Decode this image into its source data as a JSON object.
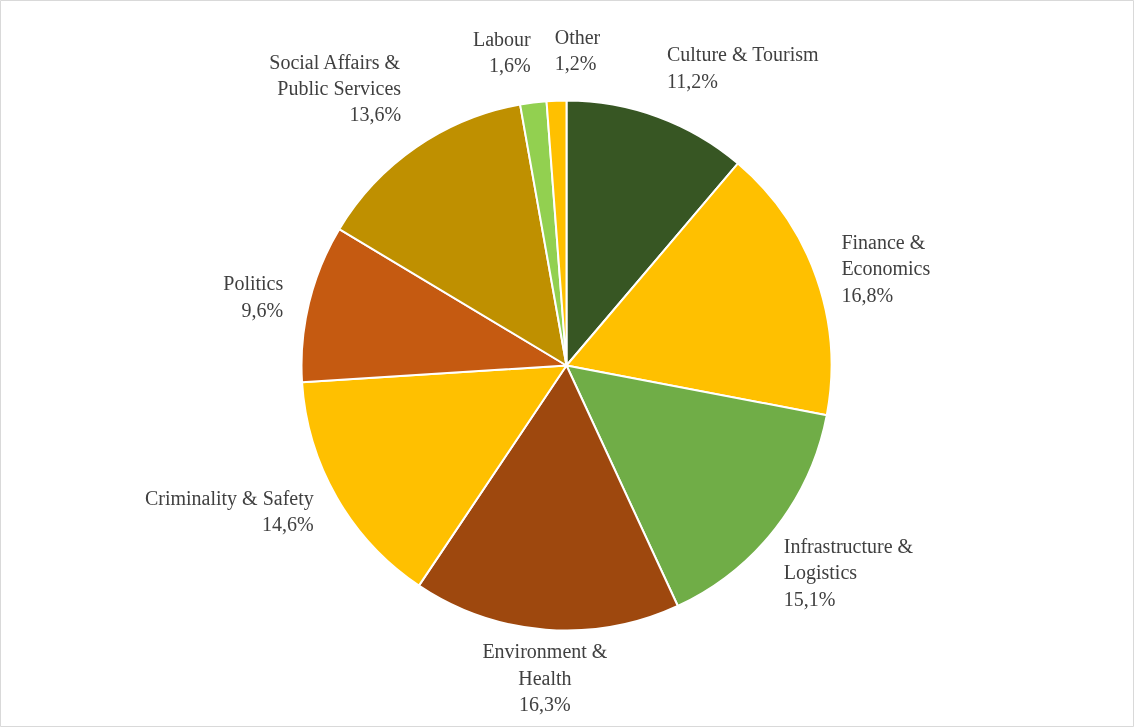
{
  "chart_data": {
    "type": "pie",
    "categories": [
      "Culture & Tourism",
      "Finance &\nEconomics",
      "Infrastructure &\nLogistics",
      "Environment &\nHealth",
      "Criminality & Safety",
      "Politics",
      "Social Affairs &\nPublic Services",
      "Labour",
      "Other"
    ],
    "values": [
      11.2,
      16.8,
      15.1,
      16.3,
      14.6,
      9.6,
      13.6,
      1.6,
      1.2
    ],
    "value_labels": [
      "11,2%",
      "16,8%",
      "15,1%",
      "16,3%",
      "14,6%",
      "9,6%",
      "13,6%",
      "1,6%",
      "1,2%"
    ],
    "colors": [
      "#375623",
      "#ffc000",
      "#70ad47",
      "#9e480e",
      "#ffc000",
      "#c55a11",
      "#bf9000",
      "#92d050",
      "#ffc000"
    ]
  }
}
